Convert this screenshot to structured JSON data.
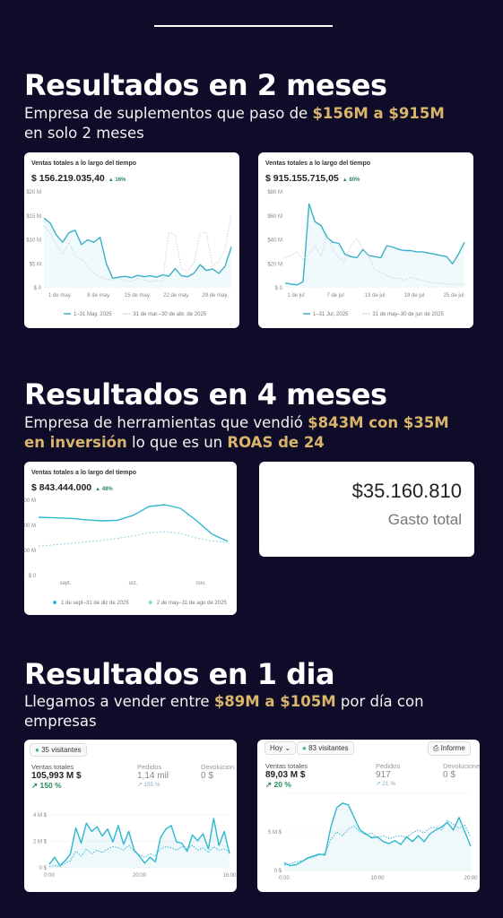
{
  "sections": [
    {
      "heading": "Resultados en 2 meses",
      "sub_parts": [
        "Empresa de suplementos que paso de ",
        "$156M a $915M",
        "en solo 2 meses"
      ]
    },
    {
      "heading": "Resultados en 4 meses",
      "sub_parts": [
        "Empresa de herramientas que vendió ",
        "$843M con $35M",
        "en inversión",
        " lo que es un ",
        "ROAS de 24"
      ]
    },
    {
      "heading": "Resultados en 1 dia",
      "sub_parts": [
        "Llegamos a vender entre ",
        "$89M a $105M",
        " por día con",
        "empresas"
      ]
    }
  ],
  "cards": {
    "c1": {
      "title": "Ventas totales a lo largo del tiempo",
      "value": "$ 156.219.035,40",
      "pct": "▲ 16%",
      "y_ticks": [
        "$20 M",
        "$15 M",
        "$10 M",
        "$5 M",
        "$ 0"
      ],
      "x_ticks": [
        "1 de may.",
        "8 de may.",
        "15 de may.",
        "22 de may.",
        "29 de may."
      ],
      "legend": [
        "1–31 May, 2025",
        "31 de mar.–30 de abr. de 2025"
      ]
    },
    "c2": {
      "title": "Ventas totales a lo largo del tiempo",
      "value": "$ 915.155.715,05",
      "pct": "▲ 80%",
      "y_ticks": [
        "$80 M",
        "$60 M",
        "$40 M",
        "$20 M",
        "$ 0"
      ],
      "x_ticks": [
        "1 de jul",
        "7 de jul",
        "13 de jul",
        "19 de jul",
        "25 de jul"
      ],
      "legend": [
        "1–31 Jul, 2025",
        "31 de may–30 de jun de 2025"
      ]
    },
    "c3": {
      "title": "Ventas totales a lo largo del tiempo",
      "value": "$ 843.444.000",
      "pct": "▲ 48%",
      "y_ticks": [
        "$300 M",
        "$200 M",
        "$100 M",
        "$ 0"
      ],
      "x_ticks": [
        "sept.",
        "oct.",
        "nov."
      ],
      "legend": [
        "1 de sept–31 de dic de 2025",
        "2 de may–31 de ago de 2025"
      ]
    },
    "c4": {
      "visitors": "35 visitantes",
      "sales_label": "Ventas totales",
      "sales_value": "105,993 M $",
      "sales_pct": "↗ 150 %",
      "orders_label": "Pedidos",
      "orders_value": "1,14 mil",
      "orders_pct": "↗ 155 %",
      "returns_label": "Devolucion",
      "returns_value": "0 $",
      "y_ticks": [
        "4 M $",
        "2 M $",
        "0 $"
      ],
      "x_ticks": [
        "0:00",
        "20:00",
        "16:00"
      ]
    },
    "c5": {
      "period": "Hoy ⌄",
      "visitors": "83 visitantes",
      "report": "Informe",
      "sales_label": "Ventas totales",
      "sales_value": "89,03 M $",
      "sales_pct": "↗ 20 %",
      "orders_label": "Pedidos",
      "orders_value": "917",
      "orders_pct": "↗ 21 %",
      "returns_label": "Devolucione",
      "returns_value": "0 $",
      "y_ticks": [
        "5 M $",
        "0 $"
      ],
      "x_ticks": [
        "0:00",
        "10:00",
        "20:00"
      ]
    }
  },
  "spend": {
    "amount": "$35.160.810",
    "label": "Gasto total"
  },
  "chart_data": [
    {
      "type": "line",
      "title": "Ventas totales a lo largo del tiempo",
      "ylim": [
        0,
        20
      ],
      "series": [
        {
          "name": "1–31 May, 2025",
          "values": [
            14.5,
            13.5,
            11,
            9.5,
            11.5,
            12,
            9,
            10,
            9.5,
            10.5,
            5,
            2,
            2.2,
            2.4,
            2.1,
            2.6,
            2.3,
            2.5,
            2.2,
            2.7,
            2.4,
            4,
            2.5,
            2.3,
            3,
            4.8,
            3.6,
            3.9,
            3,
            4.5,
            8.5
          ]
        },
        {
          "name": "31 de mar.–30 de abr. de 2025",
          "values": [
            13,
            11.5,
            9,
            7,
            9.5,
            6.5,
            6,
            4.5,
            3,
            2.2,
            1.8,
            1.6,
            2,
            1.5,
            1.3,
            2,
            1.6,
            1.2,
            1.5,
            1.4,
            11.5,
            11,
            4,
            3.5,
            5,
            11.5,
            11.5,
            4.5,
            5.5,
            8,
            15.5
          ]
        }
      ]
    },
    {
      "type": "line",
      "title": "Ventas totales a lo largo del tiempo",
      "ylim": [
        0,
        80
      ],
      "series": [
        {
          "name": "1–31 Jul, 2025",
          "values": [
            4,
            3,
            2.5,
            5,
            70,
            55,
            52,
            42,
            38,
            37,
            28,
            26,
            25,
            32,
            27,
            26,
            25,
            35,
            34,
            32,
            31,
            31,
            30,
            30,
            29,
            28,
            27,
            26,
            20,
            28,
            38
          ]
        },
        {
          "name": "31 de may–30 de jun de 2025",
          "values": [
            25,
            27,
            30,
            24,
            28,
            35,
            26,
            45,
            32,
            25,
            22,
            35,
            41,
            33,
            27,
            15,
            13,
            10,
            8,
            8,
            6,
            9,
            7,
            6,
            5,
            4,
            4,
            3,
            3,
            3,
            3
          ]
        }
      ]
    },
    {
      "type": "line",
      "title": "Ventas totales a lo largo del tiempo",
      "ylim": [
        0,
        300
      ],
      "series": [
        {
          "name": "1 de sept–31 de dic de 2025",
          "values": [
            232,
            230,
            228,
            222,
            218,
            220,
            240,
            275,
            282,
            268,
            220,
            165,
            136
          ]
        },
        {
          "name": "2 de may–31 de ago de 2025",
          "values": [
            117,
            122,
            128,
            134,
            140,
            148,
            158,
            170,
            175,
            168,
            150,
            138,
            131
          ]
        }
      ]
    },
    {
      "type": "line",
      "ylim": [
        0,
        4.5
      ],
      "series": [
        {
          "name": "",
          "values": [
            0.3,
            0.9,
            0.2,
            0.6,
            1.2,
            3.4,
            2.1,
            3.8,
            3.1,
            3.5,
            2.7,
            3.3,
            2.2,
            3.6,
            2.0,
            3.1,
            1.5,
            1.0,
            0.4,
            0.9,
            0.5,
            2.6,
            3.3,
            3.6,
            2.2,
            2.1,
            1.4,
            2.8,
            2.3,
            2.9,
            1.6,
            4.2,
            1.9,
            3.1,
            1.2
          ]
        },
        {
          "name": "",
          "values": [
            0.1,
            0.2,
            0.1,
            0.4,
            0.6,
            1.4,
            1.0,
            1.6,
            1.2,
            1.5,
            1.3,
            1.6,
            1.8,
            1.7,
            1.5,
            1.9,
            1.4,
            1.1,
            0.9,
            1.2,
            1.0,
            1.6,
            1.8,
            1.7,
            1.5,
            1.8,
            1.6,
            1.9,
            1.5,
            1.7,
            1.3,
            1.8,
            1.5,
            1.6,
            1.4
          ]
        }
      ]
    },
    {
      "type": "line",
      "ylim": [
        0,
        8
      ],
      "series": [
        {
          "name": "",
          "values": [
            0.8,
            0.5,
            0.6,
            0.9,
            1.3,
            1.5,
            1.7,
            1.6,
            4.5,
            6.5,
            7.0,
            6.8,
            5.5,
            4.2,
            3.8,
            3.4,
            3.5,
            3.0,
            2.8,
            3.1,
            2.7,
            3.5,
            3.0,
            3.6,
            3.0,
            3.8,
            4.2,
            4.5,
            5.0,
            4.2,
            5.5,
            4.0,
            2.5
          ]
        },
        {
          "name": "",
          "values": [
            0.6,
            0.7,
            0.9,
            1.0,
            1.2,
            1.4,
            1.6,
            1.8,
            3.2,
            4.0,
            3.6,
            4.3,
            4.6,
            4.0,
            3.7,
            3.9,
            3.4,
            3.6,
            3.3,
            3.5,
            3.6,
            3.4,
            3.9,
            4.2,
            3.9,
            4.4,
            4.5,
            4.2,
            5.2,
            4.8,
            4.4,
            4.7,
            3.5
          ]
        }
      ]
    }
  ]
}
